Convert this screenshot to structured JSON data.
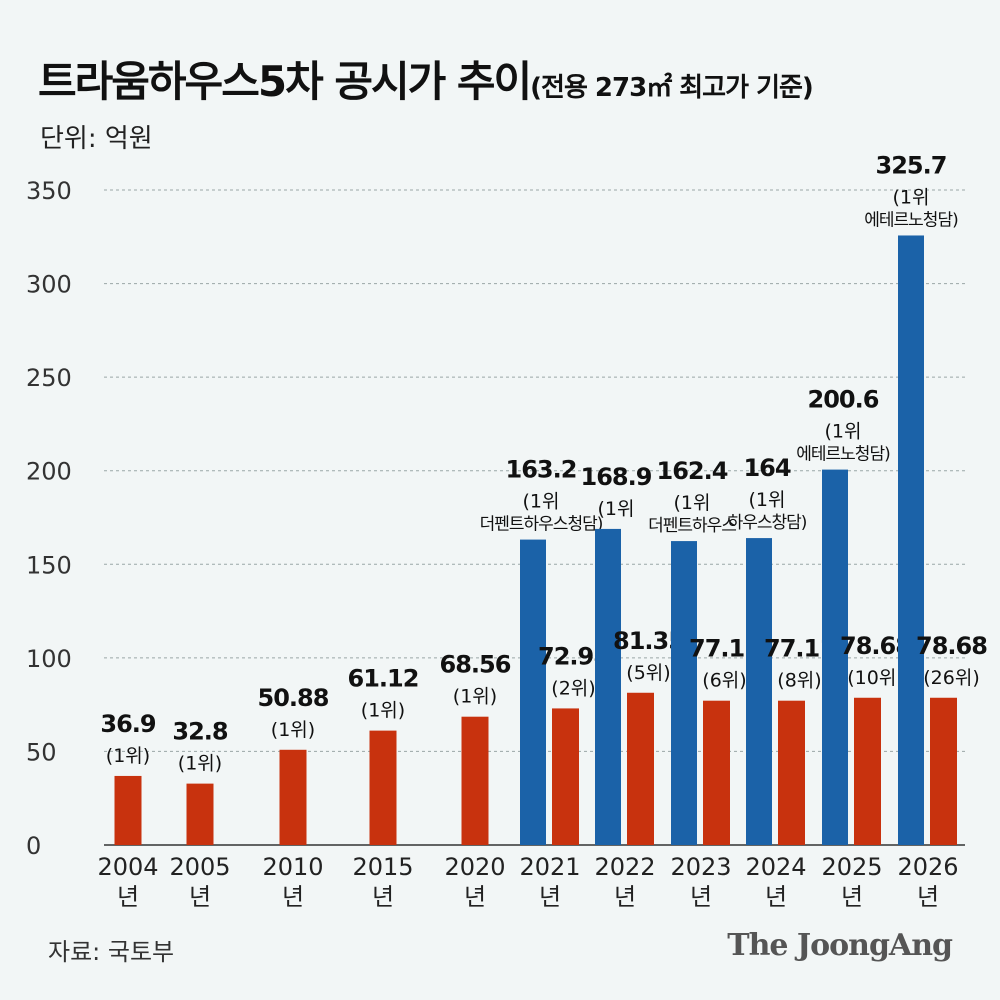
{
  "title": "트라움하우스5차 공시가 추이",
  "subtitle": "(전용 273㎡ 최고가 기준)",
  "unit": "단위: 억원",
  "source": "자료: 국토부",
  "brand": "The JoongAng",
  "colors": {
    "red": "#c8320e",
    "blue": "#1b62a8",
    "background": "#f2f6f6",
    "grid": "#9aa7a7"
  },
  "chart_data": {
    "type": "bar",
    "ylim": [
      0,
      350
    ],
    "yticks": [
      0,
      50,
      100,
      150,
      200,
      250,
      300,
      350
    ],
    "grid": true,
    "categories": [
      "2004\n년",
      "2005\n년",
      "2010\n년",
      "2015\n년",
      "2020\n년",
      "2021\n년",
      "2022\n년",
      "2023\n년",
      "2024\n년",
      "2025\n년",
      "2026\n년"
    ],
    "series": [
      {
        "color": "red",
        "values": [
          36.9,
          32.8,
          50.88,
          61.12,
          68.56,
          72.98,
          81.35,
          77.11,
          77.11,
          78.68,
          78.68
        ],
        "labels": [
          "36.9",
          "32.8",
          "50.88",
          "61.12",
          "68.56",
          "72.98",
          "81.35",
          "77.11",
          "77.11",
          "78.68",
          "78.68"
        ],
        "ranks": [
          "(1위)",
          "(1위)",
          "(1위)",
          "(1위)",
          "(1위)",
          "(2위)",
          "(5위)",
          "(6위)",
          "(8위)",
          "(10위)",
          "(26위)"
        ]
      },
      {
        "color": "blue",
        "values": [
          null,
          null,
          null,
          null,
          null,
          163.2,
          168.9,
          162.4,
          164,
          200.6,
          325.7
        ],
        "labels": [
          "",
          "",
          "",
          "",
          "",
          "163.2",
          "168.9",
          "162.4",
          "164",
          "200.6",
          "325.7"
        ],
        "ranks": [
          "",
          "",
          "",
          "",
          "",
          "(1위",
          "(1위",
          "(1위",
          "(1위",
          "(1위",
          "(1위"
        ],
        "names": [
          "",
          "",
          "",
          "",
          "",
          "더펜트하우스청담)",
          "",
          "더펜트하우스",
          "하우스창담)",
          "에테르노청담)",
          "에테르노청담)"
        ]
      }
    ]
  }
}
